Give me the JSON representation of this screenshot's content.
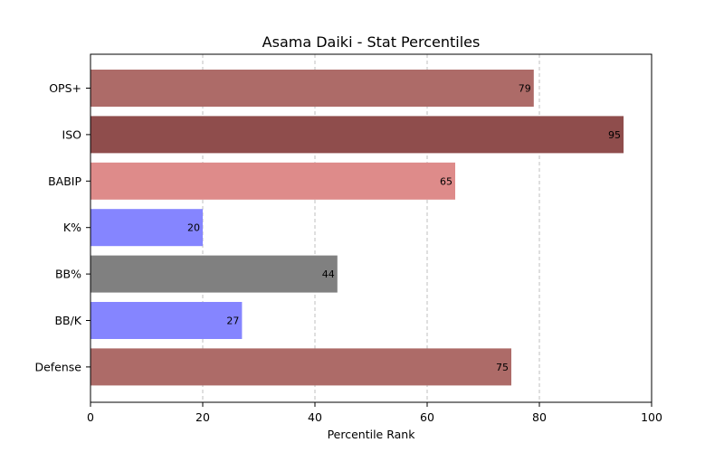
{
  "chart_data": {
    "type": "bar",
    "orientation": "horizontal",
    "title": "Asama Daiki - Stat Percentiles",
    "xlabel": "Percentile Rank",
    "ylabel": "",
    "xlim": [
      0,
      100
    ],
    "xticks": [
      0,
      20,
      40,
      60,
      80,
      100
    ],
    "grid": "x-dashed",
    "categories": [
      "OPS+",
      "ISO",
      "BABIP",
      "K%",
      "BB%",
      "BB/K",
      "Defense"
    ],
    "values": [
      79,
      95,
      65,
      20,
      44,
      27,
      75
    ],
    "colors": [
      "#ad6b68",
      "#8f4d4c",
      "#de8b8a",
      "#8585ff",
      "#808080",
      "#8585ff",
      "#ad6b68"
    ]
  }
}
